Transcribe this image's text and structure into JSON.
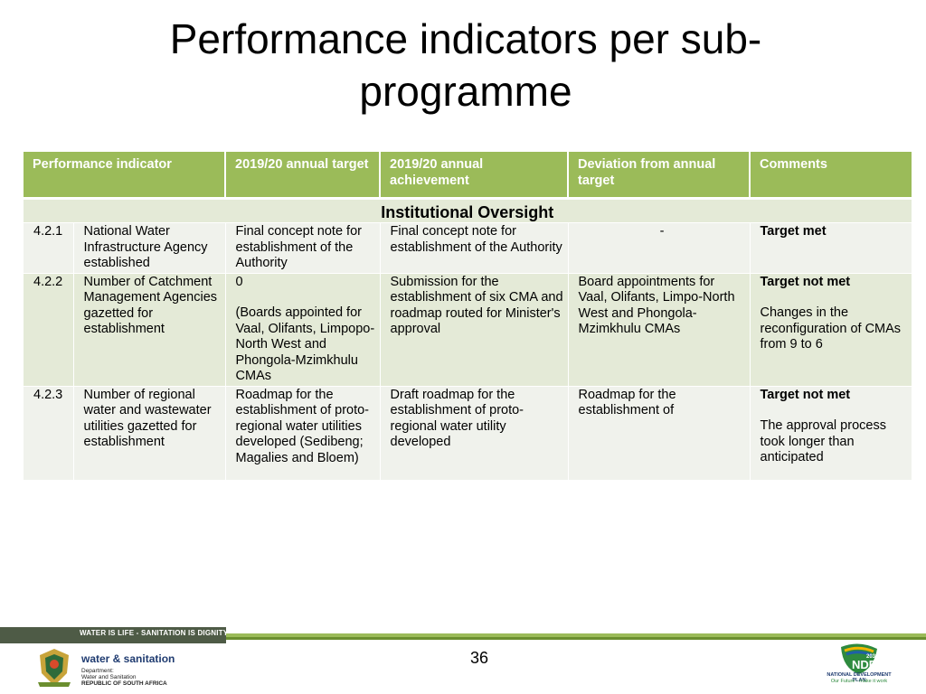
{
  "slide": {
    "title": "Performance indicators per sub-programme",
    "page_number": "36"
  },
  "table": {
    "headers": [
      "Performance indicator",
      "2019/20 annual target",
      "2019/20 annual achievement",
      "Deviation from annual target",
      "Comments"
    ],
    "section": "Institutional Oversight",
    "rows": [
      {
        "num": "4.2.1",
        "indicator": "National Water Infrastructure Agency established",
        "target": "Final concept note for establishment of the Authority",
        "achievement": "Final concept note for establishment of the Authority",
        "deviation": "-",
        "comment_status": "Target met",
        "comment_text": ""
      },
      {
        "num": "4.2.2",
        "indicator": "Number of Catchment Management Agencies gazetted for establishment",
        "target_value": "0",
        "target": "(Boards appointed for Vaal, Olifants, Limpopo-North West and Phongola-Mzimkhulu CMAs",
        "achievement": "Submission for the establishment of six CMA and roadmap routed for Minister's approval",
        "deviation": "Board appointments for Vaal, Olifants, Limpo-North West and Phongola-Mzimkhulu CMAs",
        "comment_status": "Target not met",
        "comment_text": "Changes in the reconfiguration of CMAs from 9 to 6"
      },
      {
        "num": "4.2.3",
        "indicator": "Number of regional water and wastewater utilities gazetted for establishment",
        "target": "Roadmap for the establishment of proto-regional water utilities developed (Sedibeng; Magalies and Bloem)",
        "achievement": "Draft  roadmap for the establishment of proto-regional water utility developed",
        "deviation": "Roadmap for the establishment of",
        "comment_status": "Target not met",
        "comment_text": "The approval process took longer than anticipated"
      }
    ]
  },
  "footer": {
    "slogan": "WATER IS LIFE - SANITATION IS DIGNITY",
    "dept_brand": "water & sanitation",
    "dept_line1": "Department:",
    "dept_line2": "Water and Sanitation",
    "dept_line3": "REPUBLIC OF SOUTH AFRICA",
    "ndp_badge": "NDP",
    "ndp_year": "2030",
    "ndp_label": "NATIONAL DEVELOPMENT PLAN",
    "ndp_tagline": "Our Future - make it work"
  },
  "colors": {
    "header_green": "#9bbb59",
    "row_light": "#f0f2ec",
    "row_alt": "#e4ead7",
    "footer_dark": "#4e5b46"
  }
}
